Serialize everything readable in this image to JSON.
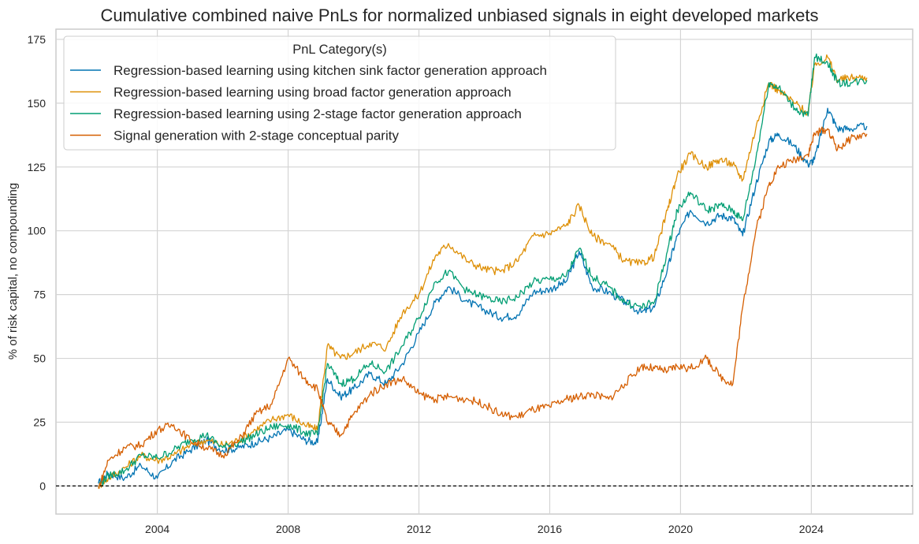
{
  "chart_data": {
    "type": "line",
    "title": "Cumulative combined naive PnLs for normalized unbiased signals in eight developed markets",
    "xlabel": "",
    "ylabel": "% of risk capital, no compounding",
    "xlim": [
      2000.9,
      2027.1
    ],
    "ylim": [
      -11,
      179
    ],
    "x_ticks": [
      2004,
      2008,
      2012,
      2016,
      2020,
      2024
    ],
    "x_tick_labels": [
      "2004",
      "2008",
      "2012",
      "2016",
      "2020",
      "2024"
    ],
    "y_ticks": [
      0,
      25,
      50,
      75,
      100,
      125,
      150,
      175
    ],
    "y_tick_labels": [
      "0",
      "25",
      "50",
      "75",
      "100",
      "125",
      "150",
      "175"
    ],
    "grid": true,
    "reference_line": {
      "y": 0,
      "style": "dashed",
      "color": "#000000"
    },
    "legend": {
      "title": "PnL Category(s)",
      "placement": "top-left"
    },
    "x": [
      2002.2,
      2002.5,
      2003.0,
      2003.5,
      2004.0,
      2004.5,
      2005.0,
      2005.5,
      2006.0,
      2006.5,
      2007.0,
      2007.5,
      2008.0,
      2008.5,
      2008.9,
      2009.2,
      2009.6,
      2010.0,
      2010.5,
      2011.0,
      2011.5,
      2012.0,
      2012.5,
      2012.9,
      2013.5,
      2014.0,
      2014.5,
      2015.0,
      2015.5,
      2016.0,
      2016.5,
      2016.9,
      2017.3,
      2017.8,
      2018.3,
      2018.8,
      2019.2,
      2019.6,
      2019.9,
      2020.3,
      2020.8,
      2021.2,
      2021.6,
      2021.9,
      2022.3,
      2022.7,
      2023.0,
      2023.5,
      2023.9,
      2024.1,
      2024.5,
      2024.8,
      2025.2,
      2025.7
    ],
    "series": [
      {
        "name": "Regression-based learning using kitchen sink factor generation approach",
        "color": "#0173b2",
        "values": [
          1,
          5,
          3,
          8,
          3,
          10,
          14,
          18,
          14,
          15,
          17,
          19,
          22,
          18,
          17,
          42,
          35,
          38,
          44,
          40,
          48,
          60,
          72,
          78,
          72,
          69,
          66,
          67,
          76,
          77,
          80,
          92,
          78,
          76,
          72,
          68,
          70,
          85,
          98,
          108,
          103,
          106,
          105,
          98,
          118,
          135,
          138,
          133,
          126,
          128,
          148,
          140,
          140,
          141
        ]
      },
      {
        "name": "Regression-based learning using broad factor generation approach",
        "color": "#de8f05",
        "values": [
          0,
          3,
          7,
          12,
          10,
          12,
          16,
          18,
          16,
          18,
          22,
          26,
          28,
          24,
          22,
          55,
          50,
          52,
          56,
          54,
          68,
          75,
          90,
          95,
          88,
          85,
          84,
          88,
          98,
          99,
          102,
          110,
          98,
          95,
          88,
          87,
          90,
          108,
          122,
          130,
          125,
          128,
          126,
          120,
          140,
          158,
          155,
          150,
          146,
          165,
          168,
          159,
          160,
          160
        ]
      },
      {
        "name": "Regression-based learning using 2-stage factor generation approach",
        "color": "#029e73",
        "values": [
          0,
          4,
          6,
          12,
          11,
          14,
          18,
          20,
          15,
          17,
          20,
          23,
          24,
          21,
          20,
          48,
          40,
          42,
          48,
          45,
          55,
          66,
          80,
          84,
          76,
          74,
          72,
          74,
          80,
          81,
          82,
          93,
          82,
          78,
          72,
          70,
          72,
          92,
          108,
          115,
          108,
          110,
          108,
          104,
          128,
          158,
          156,
          148,
          145,
          168,
          166,
          158,
          158,
          159
        ]
      },
      {
        "name": "Signal generation with 2-stage conceptual parity",
        "color": "#d55e00",
        "values": [
          -1,
          10,
          15,
          16,
          22,
          24,
          18,
          15,
          12,
          18,
          28,
          32,
          50,
          42,
          38,
          25,
          20,
          28,
          36,
          40,
          42,
          36,
          34,
          35,
          34,
          32,
          28,
          27,
          30,
          31,
          34,
          35,
          36,
          34,
          40,
          47,
          46,
          45,
          47,
          46,
          50,
          43,
          40,
          70,
          100,
          118,
          125,
          128,
          130,
          138,
          140,
          132,
          136,
          138
        ]
      }
    ]
  }
}
